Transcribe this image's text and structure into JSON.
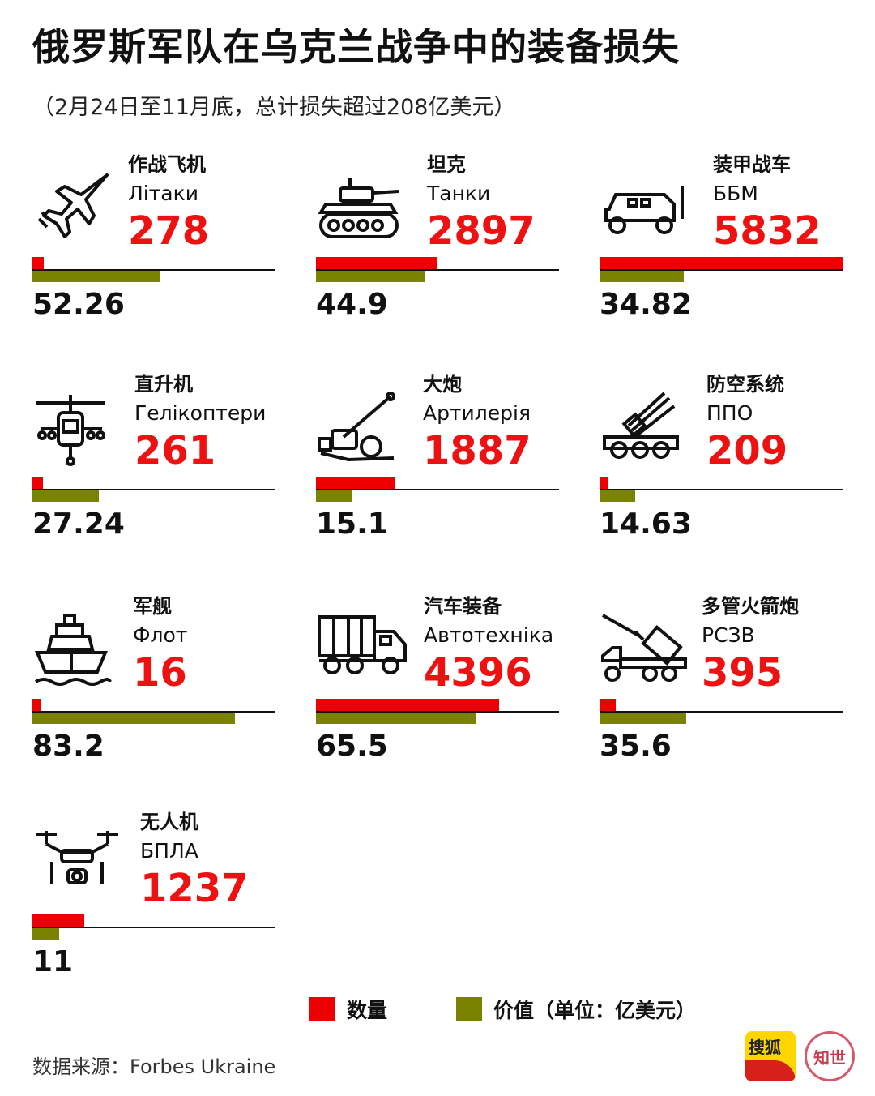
{
  "title": "俄罗斯军队在乌克兰战争中的装备损失",
  "subtitle": "（2月24日至11月底，总计损失超过208亿美元）",
  "chart_data": {
    "type": "bar",
    "categories": [
      {
        "cn": "作战飞机",
        "ua": "Літаки",
        "icon": "fighter-jet-icon"
      },
      {
        "cn": "坦克",
        "ua": "Танки",
        "icon": "tank-icon"
      },
      {
        "cn": "装甲战车",
        "ua": "ББМ",
        "icon": "armored-vehicle-icon"
      },
      {
        "cn": "直升机",
        "ua": "Гелікоптери",
        "icon": "helicopter-icon"
      },
      {
        "cn": "大炮",
        "ua": "Артилерія",
        "icon": "artillery-icon"
      },
      {
        "cn": "防空系统",
        "ua": "ППО",
        "icon": "air-defense-icon"
      },
      {
        "cn": "军舰",
        "ua": "Флот",
        "icon": "warship-icon"
      },
      {
        "cn": "汽车装备",
        "ua": "Автотехніка",
        "icon": "truck-icon"
      },
      {
        "cn": "多管火箭炮",
        "ua": "РСЗВ",
        "icon": "rocket-launcher-icon"
      },
      {
        "cn": "无人机",
        "ua": "БПЛА",
        "icon": "drone-icon"
      }
    ],
    "series": [
      {
        "name": "数量",
        "color": "#ee0000",
        "values": [
          278,
          2897,
          5832,
          261,
          1887,
          209,
          16,
          4396,
          395,
          1237
        ]
      },
      {
        "name": "价值（单位：亿美元）",
        "color": "#7a8300",
        "values": [
          52.26,
          44.9,
          34.82,
          27.24,
          15.1,
          14.63,
          83.2,
          65.5,
          35.6,
          11
        ]
      }
    ],
    "value_labels": [
      "52.26",
      "44.9",
      "34.82",
      "27.24",
      "15.1",
      "14.63",
      "83.2",
      "65.5",
      "35.6",
      "11"
    ],
    "count_max": 5832,
    "value_max": 100,
    "legend_placement": "bottom"
  },
  "legend": {
    "count_label": "数量",
    "value_label": "价值（单位：亿美元）"
  },
  "source": "数据来源：Forbes Ukraine",
  "logos": {
    "sohu": "搜狐",
    "zhi": "知世"
  }
}
